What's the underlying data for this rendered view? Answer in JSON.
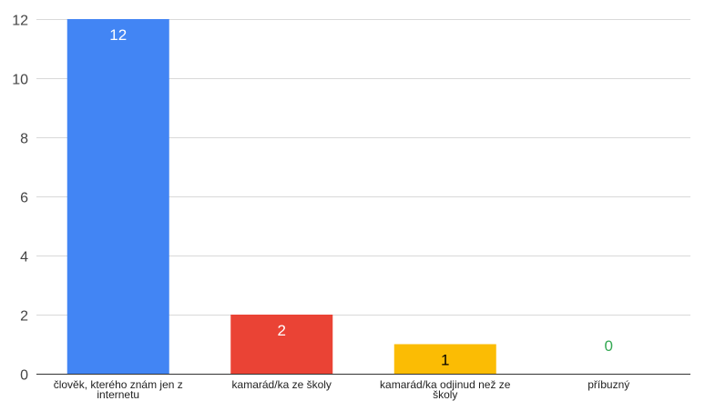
{
  "chart_data": {
    "type": "bar",
    "title": "",
    "xlabel": "",
    "ylabel": "",
    "categories": [
      [
        "člověk, kterého znám jen z",
        "internetu"
      ],
      [
        "kamarád/ka ze školy"
      ],
      [
        "kamarád/ka odjinud než ze",
        "školy"
      ],
      [
        "příbuzný"
      ]
    ],
    "values": [
      12,
      2,
      1,
      0
    ],
    "data_labels": [
      "12",
      "2",
      "1",
      "0"
    ],
    "colors": [
      "#4285f4",
      "#ea4335",
      "#fbbc04",
      "#34a853"
    ],
    "label_colors": [
      "#ffffff",
      "#ffffff",
      "#000000",
      "#34a853"
    ],
    "ylim": [
      0,
      12
    ],
    "yticks": [
      0,
      2,
      4,
      6,
      8,
      10,
      12
    ],
    "ytick_labels": [
      "0",
      "2",
      "4",
      "6",
      "8",
      "10",
      "12"
    ],
    "grid": true,
    "legend": "none"
  }
}
